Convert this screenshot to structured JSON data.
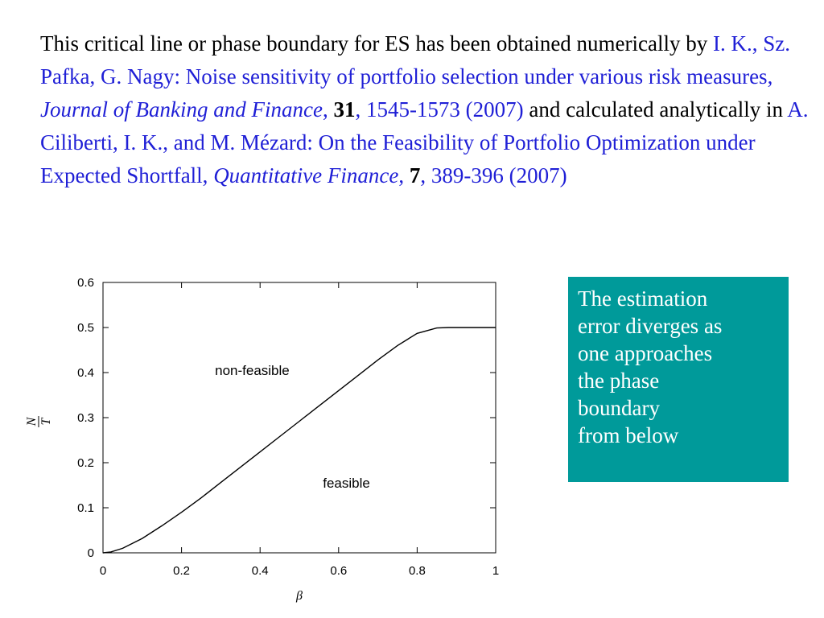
{
  "paragraph": {
    "t1": "This critical line or phase boundary for ES has been obtained numerically by ",
    "ref1_authors": "I. K., Sz. Pafka, G. Nagy: Noise sensitivity of portfolio selection under various risk measures, ",
    "ref1_journal": "Journal of Banking and Finance",
    "ref1_comma": ", ",
    "ref1_volume": "31",
    "ref1_pages": ", 1545-1573 (2007)",
    "t2": " and calculated analytically in ",
    "ref2_authors": "A. Ciliberti, I. K., and M. Mézard: On the Feasibility of Portfolio Optimization under Expected Shortfall, ",
    "ref2_journal": "Quantitative Finance",
    "ref2_comma": ", ",
    "ref2_volume": "7",
    "ref2_pages": ", 389-396 (2007)"
  },
  "callout": {
    "text": "The estimation\nerror diverges as\none approaches\nthe phase\nboundary\nfrom below"
  },
  "colors": {
    "text": "#000000",
    "link": "#1f1fd6",
    "callout_bg": "#009a9a",
    "callout_text": "#ffffff"
  },
  "chart_data": {
    "type": "line",
    "xlabel": "β",
    "ylabel_num": "N",
    "ylabel_den": "T",
    "xlim": [
      0,
      1
    ],
    "ylim": [
      0,
      0.6
    ],
    "x_ticks": [
      "0",
      "0.2",
      "0.4",
      "0.6",
      "0.8",
      "1"
    ],
    "y_ticks": [
      "0",
      "0.1",
      "0.2",
      "0.3",
      "0.4",
      "0.5",
      "0.6"
    ],
    "region_labels": [
      {
        "text": "non-feasible",
        "x": 0.38,
        "y": 0.395
      },
      {
        "text": "feasible",
        "x": 0.62,
        "y": 0.145
      }
    ],
    "series": [
      {
        "x": [
          0,
          0.02,
          0.05,
          0.1,
          0.15,
          0.2,
          0.25,
          0.3,
          0.35,
          0.4,
          0.45,
          0.5,
          0.55,
          0.6,
          0.65,
          0.7,
          0.75,
          0.8,
          0.85,
          0.88,
          0.9,
          0.95,
          1.0
        ],
        "y": [
          0,
          0.002,
          0.01,
          0.032,
          0.06,
          0.09,
          0.122,
          0.156,
          0.19,
          0.224,
          0.258,
          0.292,
          0.326,
          0.36,
          0.394,
          0.428,
          0.46,
          0.487,
          0.499,
          0.5,
          0.5,
          0.5,
          0.5
        ]
      }
    ],
    "grid": false
  }
}
